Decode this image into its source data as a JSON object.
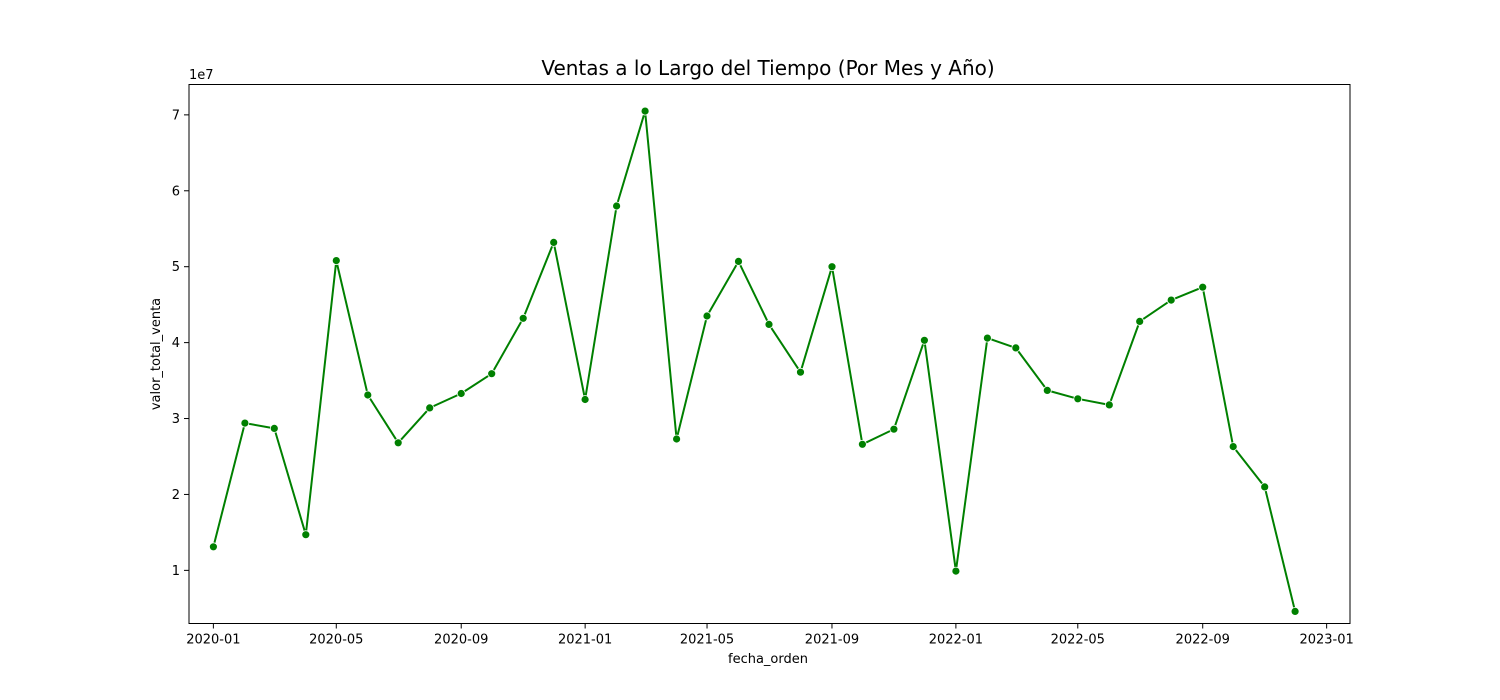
{
  "chart_data": {
    "type": "line",
    "title": "Ventas a lo Largo del Tiempo (Por Mes y Año)",
    "xlabel": "fecha_orden",
    "ylabel": "valor_total_venta",
    "y_offset_label": "1e7",
    "y_scale": 10000000,
    "ylim": [
      0.3,
      7.4
    ],
    "xlim": [
      "2019-12-08",
      "2023-01-24"
    ],
    "x_ticks": [
      "2020-01",
      "2020-05",
      "2020-09",
      "2021-01",
      "2021-05",
      "2021-09",
      "2022-01",
      "2022-05",
      "2022-09",
      "2023-01"
    ],
    "y_ticks": [
      1,
      2,
      3,
      4,
      5,
      6,
      7
    ],
    "y_tick_labels": [
      "1",
      "2",
      "3",
      "4",
      "5",
      "6",
      "7"
    ],
    "grid": false,
    "color": "#008000",
    "marker": "circle",
    "x": [
      "2020-01-01",
      "2020-02-01",
      "2020-03-01",
      "2020-04-01",
      "2020-05-01",
      "2020-06-01",
      "2020-07-01",
      "2020-08-01",
      "2020-09-01",
      "2020-10-01",
      "2020-11-01",
      "2020-12-01",
      "2021-01-01",
      "2021-02-01",
      "2021-03-01",
      "2021-04-01",
      "2021-05-01",
      "2021-06-01",
      "2021-07-01",
      "2021-08-01",
      "2021-09-01",
      "2021-10-01",
      "2021-11-01",
      "2021-12-01",
      "2022-01-01",
      "2022-02-01",
      "2022-03-01",
      "2022-04-01",
      "2022-05-01",
      "2022-06-01",
      "2022-07-01",
      "2022-08-01",
      "2022-09-01",
      "2022-10-01",
      "2022-11-01",
      "2022-12-01"
    ],
    "y": [
      13100000,
      29400000,
      28700000,
      14700000,
      50800000,
      33100000,
      26800000,
      31400000,
      33300000,
      35900000,
      43200000,
      53200000,
      32500000,
      58000000,
      70500000,
      27300000,
      43500000,
      50700000,
      42400000,
      36100000,
      50000000,
      26600000,
      28600000,
      40300000,
      9900000,
      40600000,
      39300000,
      33700000,
      32600000,
      31800000,
      42800000,
      45600000,
      47300000,
      26300000,
      21000000,
      4600000
    ]
  }
}
